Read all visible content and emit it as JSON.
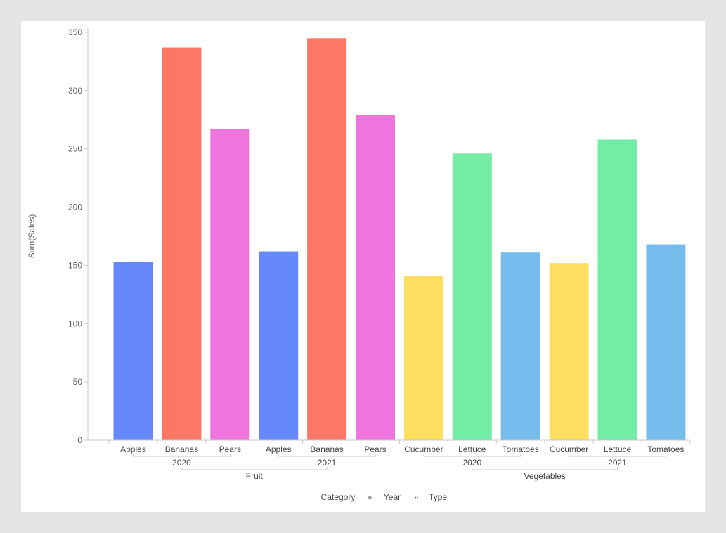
{
  "chart_data": {
    "type": "bar",
    "ylabel": "Sum(Sales)",
    "ylim": [
      0,
      350
    ],
    "yticks": [
      0,
      50,
      100,
      150,
      200,
      250,
      300,
      350
    ],
    "grid": false,
    "hierarchy_levels": [
      "Category",
      "Year",
      "Type"
    ],
    "hierarchy_separator": "»",
    "groups": [
      {
        "category": "Fruit",
        "years": [
          {
            "year": "2020",
            "bars": [
              {
                "type": "Apples",
                "value": 153
              },
              {
                "type": "Bananas",
                "value": 337
              },
              {
                "type": "Pears",
                "value": 267
              }
            ]
          },
          {
            "year": "2021",
            "bars": [
              {
                "type": "Apples",
                "value": 162
              },
              {
                "type": "Bananas",
                "value": 345
              },
              {
                "type": "Pears",
                "value": 279
              }
            ]
          }
        ]
      },
      {
        "category": "Vegetables",
        "years": [
          {
            "year": "2020",
            "bars": [
              {
                "type": "Cucumber",
                "value": 141
              },
              {
                "type": "Lettuce",
                "value": 246
              },
              {
                "type": "Tomatoes",
                "value": 161
              }
            ]
          },
          {
            "year": "2021",
            "bars": [
              {
                "type": "Cucumber",
                "value": 152
              },
              {
                "type": "Lettuce",
                "value": 258
              },
              {
                "type": "Tomatoes",
                "value": 168
              }
            ]
          }
        ]
      }
    ],
    "colors": {
      "Apples": "#6589fb",
      "Bananas": "#fe7765",
      "Pears": "#ed75dd",
      "Cucumber": "#ffdf5f",
      "Lettuce": "#73eca6",
      "Tomatoes": "#74bdec"
    }
  }
}
